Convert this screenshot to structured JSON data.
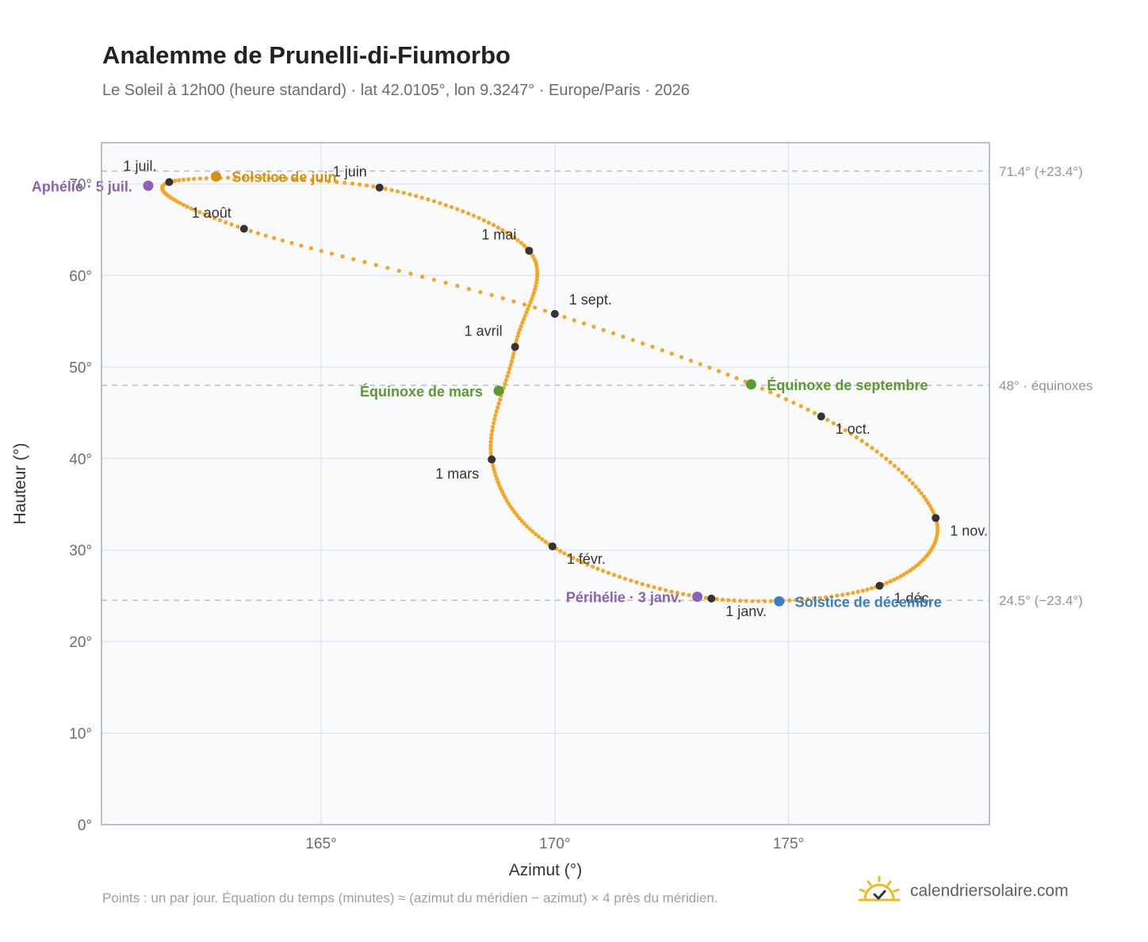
{
  "title": "Analemme de Prunelli-di-Fiumorbo",
  "subtitle": "Le Soleil à 12h00 (heure standard) · lat 42.0105°, lon 9.3247° · Europe/Paris · 2026",
  "footnote": "Points : un par jour. Équation du temps (minutes) ≈ (azimut du méridien − azimut) × 4 près du méridien.",
  "brand": {
    "name": "calendriersolaire.com",
    "icon": "sun-check-icon"
  },
  "colors": {
    "curve": "#f5a623",
    "month_marker": "#333333",
    "summer_solstice": "#d4900a",
    "winter_solstice": "#3b7dc4",
    "equinox": "#5a9a2e",
    "apsis": "#8e5fb5",
    "plot_bg": "#f8fafc",
    "grid": "#e3e8ee",
    "reference_line": "#b9c0c8",
    "axis_text": "#6b6b76"
  },
  "chart_data": {
    "type": "scatter",
    "xlabel": "Azimut (°)",
    "ylabel": "Hauteur (°)",
    "xlim": [
      160.3,
      179.3
    ],
    "ylim": [
      0,
      74.5
    ],
    "x_ticks": [
      165,
      170,
      175
    ],
    "y_ticks": [
      0,
      10,
      20,
      30,
      40,
      50,
      60,
      70
    ],
    "x_tick_labels": [
      "165°",
      "170°",
      "175°"
    ],
    "y_tick_labels": [
      "0°",
      "10°",
      "20°",
      "30°",
      "40°",
      "50°",
      "60°",
      "70°"
    ],
    "grid": true,
    "reference_lines": [
      {
        "y": 71.4,
        "label": "71.4° (+23.4°)"
      },
      {
        "y": 48.0,
        "label": "48° · équinoxes"
      },
      {
        "y": 24.5,
        "label": "24.5° (−23.4°)"
      }
    ],
    "monthly_points": [
      {
        "label": "1 janv.",
        "az": 173.35,
        "alt": 24.7,
        "label_pos": "below-right"
      },
      {
        "label": "1 févr.",
        "az": 169.95,
        "alt": 30.4,
        "label_pos": "below-right"
      },
      {
        "label": "1 mars",
        "az": 168.65,
        "alt": 39.9,
        "label_pos": "below-left"
      },
      {
        "label": "1 avril",
        "az": 169.15,
        "alt": 52.2,
        "label_pos": "above-left"
      },
      {
        "label": "1 mai",
        "az": 169.45,
        "alt": 62.7,
        "label_pos": "above-left"
      },
      {
        "label": "1 juin",
        "az": 166.25,
        "alt": 69.6,
        "label_pos": "above-left"
      },
      {
        "label": "1 juil.",
        "az": 161.75,
        "alt": 70.2,
        "label_pos": "above-left"
      },
      {
        "label": "1 août",
        "az": 163.35,
        "alt": 65.1,
        "label_pos": "above-left"
      },
      {
        "label": "1 sept.",
        "az": 170.0,
        "alt": 55.8,
        "label_pos": "above-right"
      },
      {
        "label": "1 oct.",
        "az": 175.7,
        "alt": 44.6,
        "label_pos": "below-right"
      },
      {
        "label": "1 nov.",
        "az": 178.15,
        "alt": 33.5,
        "label_pos": "below-right"
      },
      {
        "label": "1 déc.",
        "az": 176.95,
        "alt": 26.1,
        "label_pos": "below-right"
      }
    ],
    "events": [
      {
        "label": "Solstice de juin",
        "az": 162.75,
        "alt": 70.8,
        "color_key": "summer_solstice",
        "label_pos": "right"
      },
      {
        "label": "Solstice de décembre",
        "az": 174.8,
        "alt": 24.4,
        "color_key": "winter_solstice",
        "label_pos": "right"
      },
      {
        "label": "Équinoxe de mars",
        "az": 168.8,
        "alt": 47.4,
        "color_key": "equinox",
        "label_pos": "left"
      },
      {
        "label": "Équinoxe de septembre",
        "az": 174.2,
        "alt": 48.1,
        "color_key": "equinox",
        "label_pos": "right"
      },
      {
        "label": "Périhélie · 3 janv.",
        "az": 173.05,
        "alt": 24.9,
        "color_key": "apsis",
        "label_pos": "left"
      },
      {
        "label": "Aphélie · 5 juil.",
        "az": 161.3,
        "alt": 69.8,
        "color_key": "apsis",
        "label_pos": "left"
      }
    ]
  }
}
